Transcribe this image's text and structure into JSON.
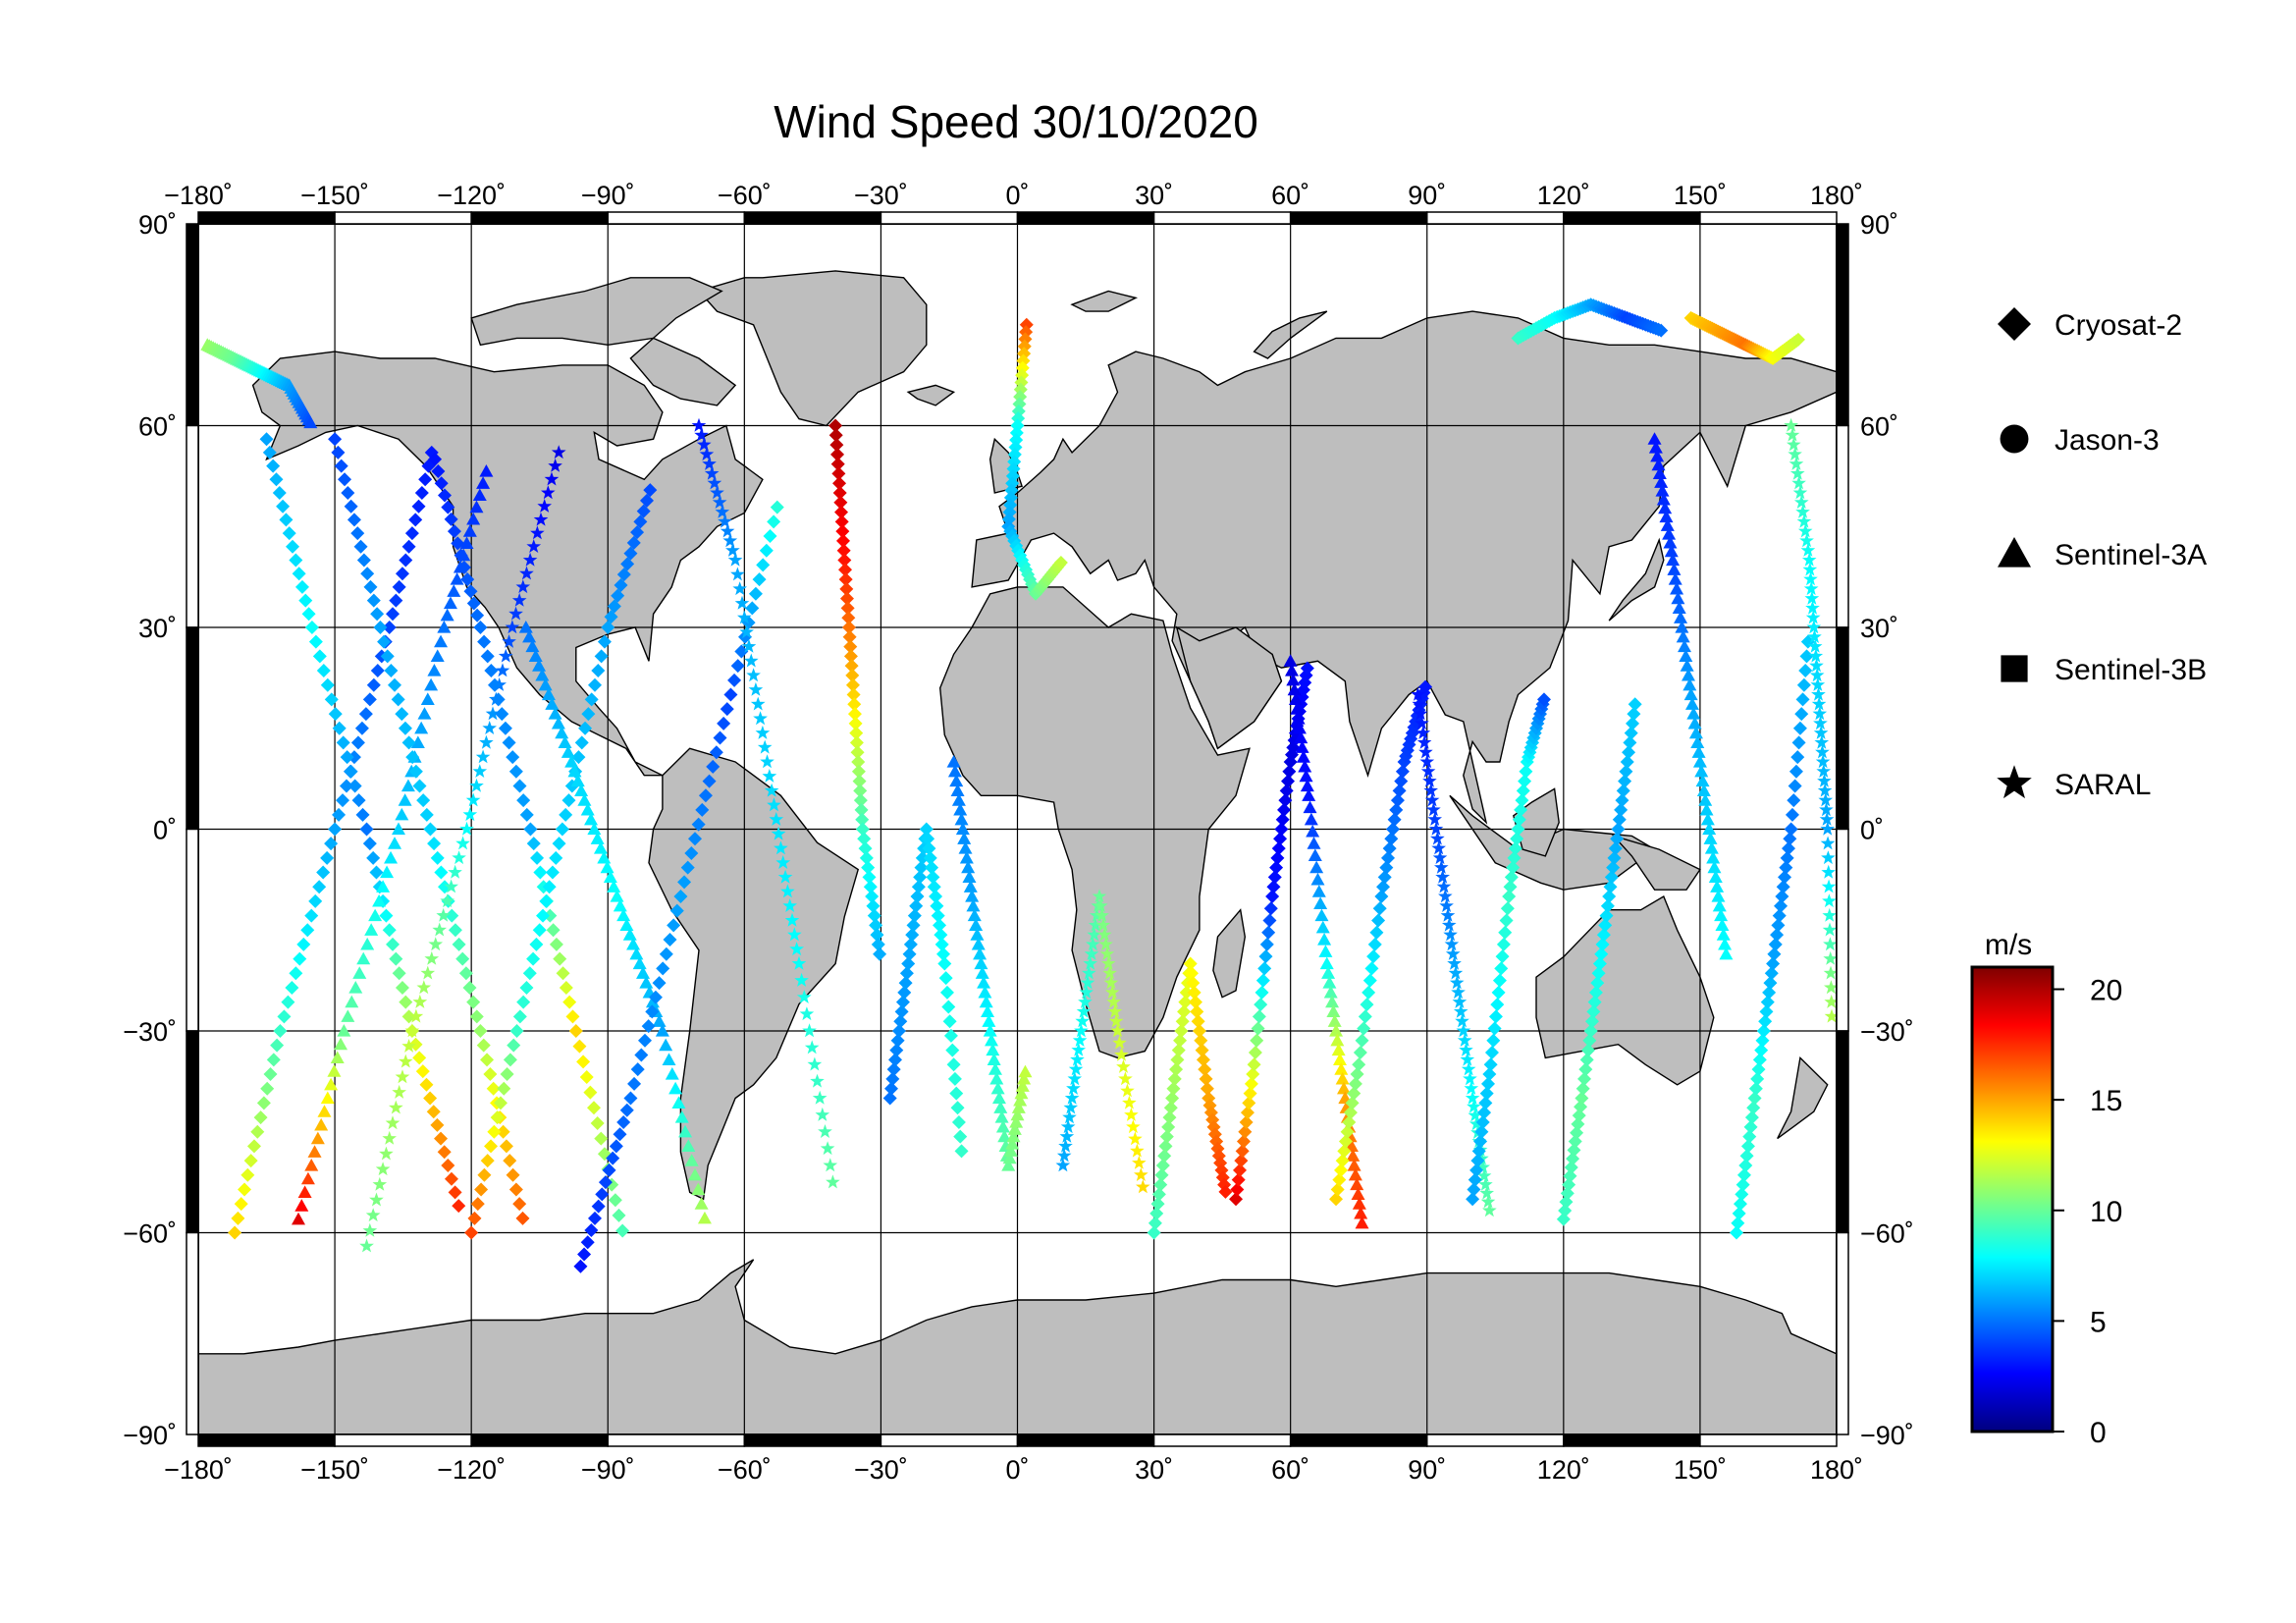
{
  "title": "Wind Speed 30/10/2020",
  "axes": {
    "x_ticks": [
      "−180˚",
      "−150˚",
      "−120˚",
      "−90˚",
      "−60˚",
      "−30˚",
      "0˚",
      "30˚",
      "60˚",
      "90˚",
      "120˚",
      "150˚",
      "180˚"
    ],
    "y_ticks": [
      "−90˚",
      "−60˚",
      "−30˚",
      "0˚",
      "30˚",
      "60˚",
      "90˚"
    ]
  },
  "legend": {
    "items": [
      {
        "label": "Cryosat-2",
        "symbol": "diamond"
      },
      {
        "label": "Jason-3",
        "symbol": "circle"
      },
      {
        "label": "Sentinel-3A",
        "symbol": "triangle"
      },
      {
        "label": "Sentinel-3B",
        "symbol": "square"
      },
      {
        "label": "SARAL",
        "symbol": "star"
      }
    ]
  },
  "colorbar": {
    "unit": "m/s",
    "ticks": [
      "0",
      "5",
      "10",
      "15",
      "20"
    ],
    "range": [
      0,
      21
    ],
    "colormap": [
      "#00007f",
      "#0000ff",
      "#007fff",
      "#00ffff",
      "#7fff7f",
      "#ffff00",
      "#ff7f00",
      "#ff0000",
      "#7f0000"
    ]
  },
  "colors": {
    "land": "#bebebe",
    "ocean": "#ffffff",
    "frame": "#000000"
  },
  "chart_data": {
    "type": "scatter",
    "title": "Wind Speed 30/10/2020",
    "xlim": [
      -180,
      180
    ],
    "ylim": [
      -90,
      90
    ],
    "series": [
      {
        "name": "Cryosat-2",
        "symbol": "diamond"
      },
      {
        "name": "Jason-3",
        "symbol": "circle"
      },
      {
        "name": "Sentinel-3A",
        "symbol": "triangle"
      },
      {
        "name": "Sentinel-3B",
        "symbol": "square"
      },
      {
        "name": "SARAL",
        "symbol": "star"
      }
    ],
    "tracks": [
      {
        "x": [
          -172,
          -162,
          -150,
          -138,
          -128
        ],
        "y": [
          -60,
          -30,
          0,
          30,
          58
        ],
        "v": [
          14,
          9,
          6,
          4,
          3
        ]
      },
      {
        "x": [
          -165,
          -155,
          -143,
          -133,
          -122
        ],
        "y": [
          58,
          30,
          0,
          -30,
          -58
        ],
        "v": [
          6,
          8,
          5,
          12,
          18
        ]
      },
      {
        "x": [
          -158,
          -148,
          -136,
          -126,
          -116
        ],
        "y": [
          -58,
          -30,
          0,
          30,
          55
        ],
        "v": [
          19,
          10,
          7,
          5,
          3
        ]
      },
      {
        "x": [
          -150,
          -140,
          -129,
          -118,
          -108
        ],
        "y": [
          58,
          30,
          0,
          -30,
          -60
        ],
        "v": [
          4,
          6,
          7,
          11,
          17
        ]
      },
      {
        "x": [
          -143,
          -133,
          -121,
          -111,
          -100
        ],
        "y": [
          -62,
          -30,
          0,
          30,
          58
        ],
        "v": [
          10,
          12,
          8,
          4,
          2
        ]
      },
      {
        "x": [
          -128,
          -118,
          -107,
          -97,
          -86
        ],
        "y": [
          55,
          30,
          0,
          -30,
          -62
        ],
        "v": [
          3,
          5,
          6,
          14,
          9
        ]
      },
      {
        "x": [
          -120,
          -110,
          -100,
          -90,
          -80
        ],
        "y": [
          -60,
          -30,
          0,
          30,
          52
        ],
        "v": [
          17,
          9,
          7,
          6,
          4
        ]
      },
      {
        "x": [
          -108,
          -98,
          -88,
          -78,
          -68
        ],
        "y": [
          30,
          10,
          -10,
          -30,
          -60
        ],
        "v": [
          5,
          7,
          8,
          6,
          12
        ]
      },
      {
        "x": [
          -96,
          -85,
          -74,
          -63,
          -52
        ],
        "y": [
          -65,
          -40,
          -10,
          20,
          50
        ],
        "v": [
          3,
          5,
          6,
          4,
          9
        ]
      },
      {
        "x": [
          -70,
          -62,
          -55,
          -48,
          -40
        ],
        "y": [
          60,
          40,
          10,
          -20,
          -55
        ],
        "v": [
          3,
          6,
          7,
          8,
          10
        ]
      },
      {
        "x": [
          -40,
          -38,
          -36,
          -34,
          -30
        ],
        "y": [
          60,
          40,
          20,
          0,
          -20
        ],
        "v": [
          20,
          18,
          14,
          9,
          6
        ]
      },
      {
        "x": [
          -28,
          -24,
          -20,
          -16,
          -12
        ],
        "y": [
          -40,
          -20,
          0,
          -20,
          -50
        ],
        "v": [
          5,
          6,
          7,
          8,
          9
        ]
      },
      {
        "x": [
          -14,
          -10,
          -6,
          -2,
          2
        ],
        "y": [
          10,
          -10,
          -30,
          -50,
          -35
        ],
        "v": [
          5,
          6,
          8,
          10,
          12
        ]
      },
      {
        "x": [
          2,
          0,
          -2,
          4,
          10
        ],
        "y": [
          75,
          60,
          45,
          35,
          40
        ],
        "v": [
          17,
          8,
          6,
          10,
          12
        ]
      },
      {
        "x": [
          10,
          14,
          18,
          22,
          28
        ],
        "y": [
          -50,
          -30,
          -10,
          -30,
          -55
        ],
        "v": [
          6,
          8,
          10,
          12,
          14
        ]
      },
      {
        "x": [
          30,
          34,
          38,
          42,
          46
        ],
        "y": [
          -60,
          -40,
          -20,
          -40,
          -55
        ],
        "v": [
          9,
          11,
          13,
          15,
          18
        ]
      },
      {
        "x": [
          48,
          52,
          56,
          60,
          64
        ],
        "y": [
          -55,
          -35,
          -10,
          10,
          25
        ],
        "v": [
          19,
          12,
          3,
          2,
          3
        ]
      },
      {
        "x": [
          60,
          64,
          68,
          72,
          76
        ],
        "y": [
          25,
          5,
          -20,
          -40,
          -60
        ],
        "v": [
          2,
          3,
          8,
          15,
          18
        ]
      },
      {
        "x": [
          70,
          75,
          80,
          85,
          90
        ],
        "y": [
          -55,
          -35,
          -10,
          10,
          22
        ],
        "v": [
          14,
          10,
          6,
          4,
          3
        ]
      },
      {
        "x": [
          88,
          92,
          96,
          100,
          104
        ],
        "y": [
          20,
          0,
          -20,
          -40,
          -58
        ],
        "v": [
          3,
          4,
          6,
          8,
          10
        ]
      },
      {
        "x": [
          100,
          104,
          108,
          112,
          116
        ],
        "y": [
          -55,
          -35,
          -10,
          10,
          20
        ],
        "v": [
          6,
          7,
          9,
          8,
          4
        ]
      },
      {
        "x": [
          120,
          124,
          128,
          132,
          136
        ],
        "y": [
          -58,
          -40,
          -20,
          0,
          20
        ],
        "v": [
          9,
          10,
          8,
          6,
          7
        ]
      },
      {
        "x": [
          140,
          144,
          148,
          152,
          156
        ],
        "y": [
          58,
          40,
          20,
          0,
          -20
        ],
        "v": [
          3,
          4,
          6,
          7,
          8
        ]
      },
      {
        "x": [
          158,
          162,
          166,
          170,
          174
        ],
        "y": [
          -60,
          -40,
          -20,
          0,
          30
        ],
        "v": [
          8,
          9,
          6,
          5,
          7
        ]
      },
      {
        "x": [
          170,
          174,
          176,
          178,
          179
        ],
        "y": [
          60,
          40,
          20,
          0,
          -30
        ],
        "v": [
          10,
          8,
          7,
          6,
          12
        ]
      },
      {
        "x": [
          110,
          118,
          126,
          134,
          142
        ],
        "y": [
          73,
          76,
          78,
          76,
          74
        ],
        "v": [
          9,
          8,
          6,
          4,
          5
        ]
      },
      {
        "x": [
          148,
          154,
          160,
          166,
          172
        ],
        "y": [
          76,
          74,
          72,
          70,
          73
        ],
        "v": [
          14,
          15,
          16,
          13,
          12
        ]
      },
      {
        "x": [
          -178,
          -172,
          -166,
          -160,
          -155
        ],
        "y": [
          72,
          70,
          68,
          66,
          60
        ],
        "v": [
          11,
          10,
          8,
          6,
          4
        ]
      }
    ]
  }
}
